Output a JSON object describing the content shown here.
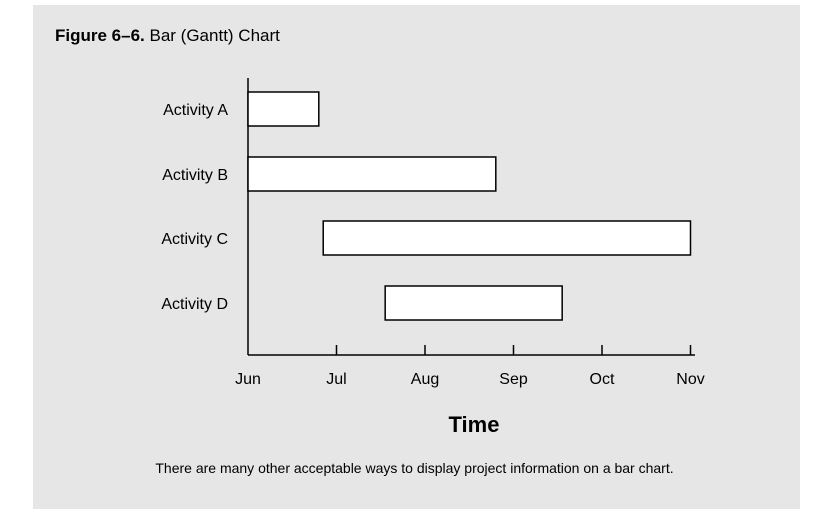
{
  "figure": {
    "label": "Figure 6–6.",
    "title": "Bar (Gantt) Chart",
    "caption": "There are many other acceptable ways to display project information on a bar chart."
  },
  "chart_data": {
    "type": "gantt",
    "xlabel": "Time",
    "ylabel": "",
    "x_ticks": [
      "Jun",
      "Jul",
      "Aug",
      "Sep",
      "Oct",
      "Nov"
    ],
    "x_range_months": [
      0,
      5.1
    ],
    "grid": false,
    "legend": "none",
    "tasks": [
      {
        "name": "Activity A",
        "start": 0.0,
        "end": 0.8
      },
      {
        "name": "Activity B",
        "start": 0.0,
        "end": 2.8
      },
      {
        "name": "Activity C",
        "start": 0.85,
        "end": 5.0
      },
      {
        "name": "Activity D",
        "start": 1.55,
        "end": 3.55
      }
    ],
    "bar_fill": "#ffffff",
    "bar_stroke": "#000000"
  }
}
